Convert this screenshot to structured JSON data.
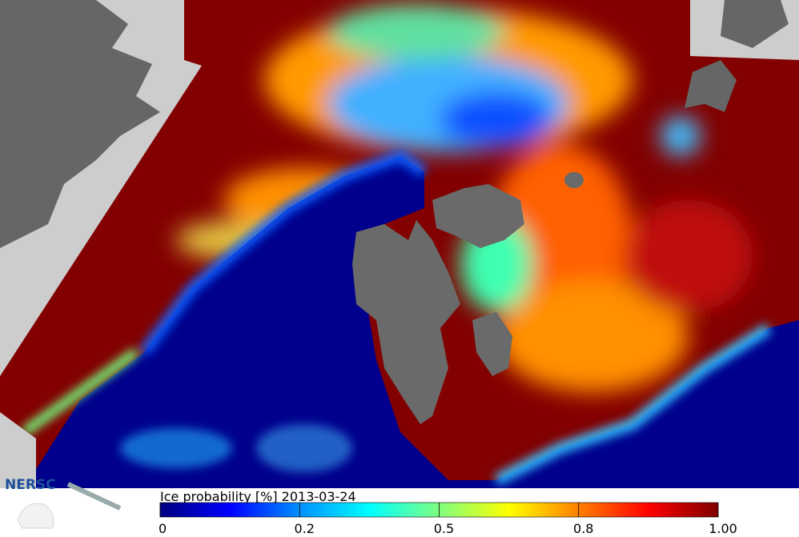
{
  "logo": "NERSC",
  "colorbar": {
    "title": "Ice probability [%] 2013-03-24",
    "lim": [
      0,
      1
    ],
    "ticks": [
      0,
      0.2,
      0.5,
      0.8,
      {
        "value": 1,
        "label": "1.00"
      }
    ],
    "colors": [
      "#00007f",
      "#0000ff",
      "#0090ff",
      "#00ffff",
      "#80ff80",
      "#ffff00",
      "#ff8000",
      "#ff0000",
      "#7f0000"
    ]
  }
}
